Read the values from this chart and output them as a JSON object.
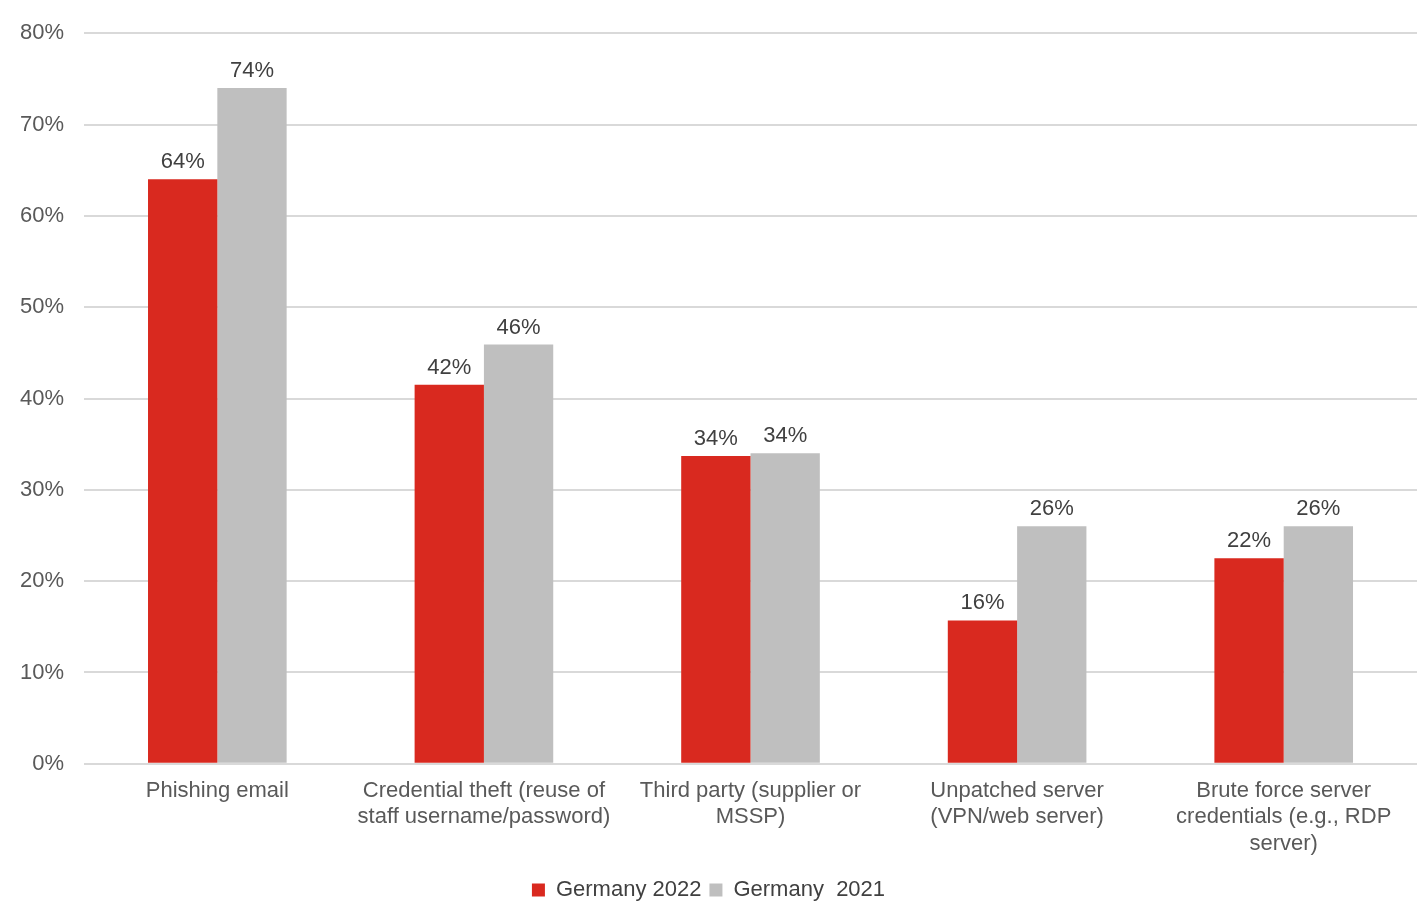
{
  "chart_data": {
    "type": "bar",
    "categories": [
      "Phishing email",
      "Credential theft (reuse of staff username/password)",
      "Third party (supplier or MSSP)",
      "Unpatched server (VPN/web server)",
      "Brute force server credentials (e.g., RDP server)"
    ],
    "series": [
      {
        "name": "Germany 2022",
        "color": "#d9291f",
        "values": [
          64.0,
          41.5,
          33.7,
          15.7,
          22.5
        ],
        "value_labels": [
          "64%",
          "42%",
          "34%",
          "16%",
          "22%"
        ]
      },
      {
        "name": "Germany  2021",
        "color": "#bfbfbf",
        "values": [
          74.0,
          45.9,
          34.0,
          26.0,
          26.0
        ],
        "value_labels": [
          "74%",
          "46%",
          "34%",
          "26%",
          "26%"
        ]
      }
    ],
    "ylim": [
      0,
      80
    ],
    "yticks": [
      {
        "value": 0,
        "label": "0%"
      },
      {
        "value": 10,
        "label": "10%"
      },
      {
        "value": 20,
        "label": "20%"
      },
      {
        "value": 30,
        "label": "30%"
      },
      {
        "value": 40,
        "label": "40%"
      },
      {
        "value": 50,
        "label": "50%"
      },
      {
        "value": 60,
        "label": "60%"
      },
      {
        "value": 70,
        "label": "70%"
      },
      {
        "value": 80,
        "label": "80%"
      }
    ],
    "grid": "y",
    "legend": "bottom"
  }
}
